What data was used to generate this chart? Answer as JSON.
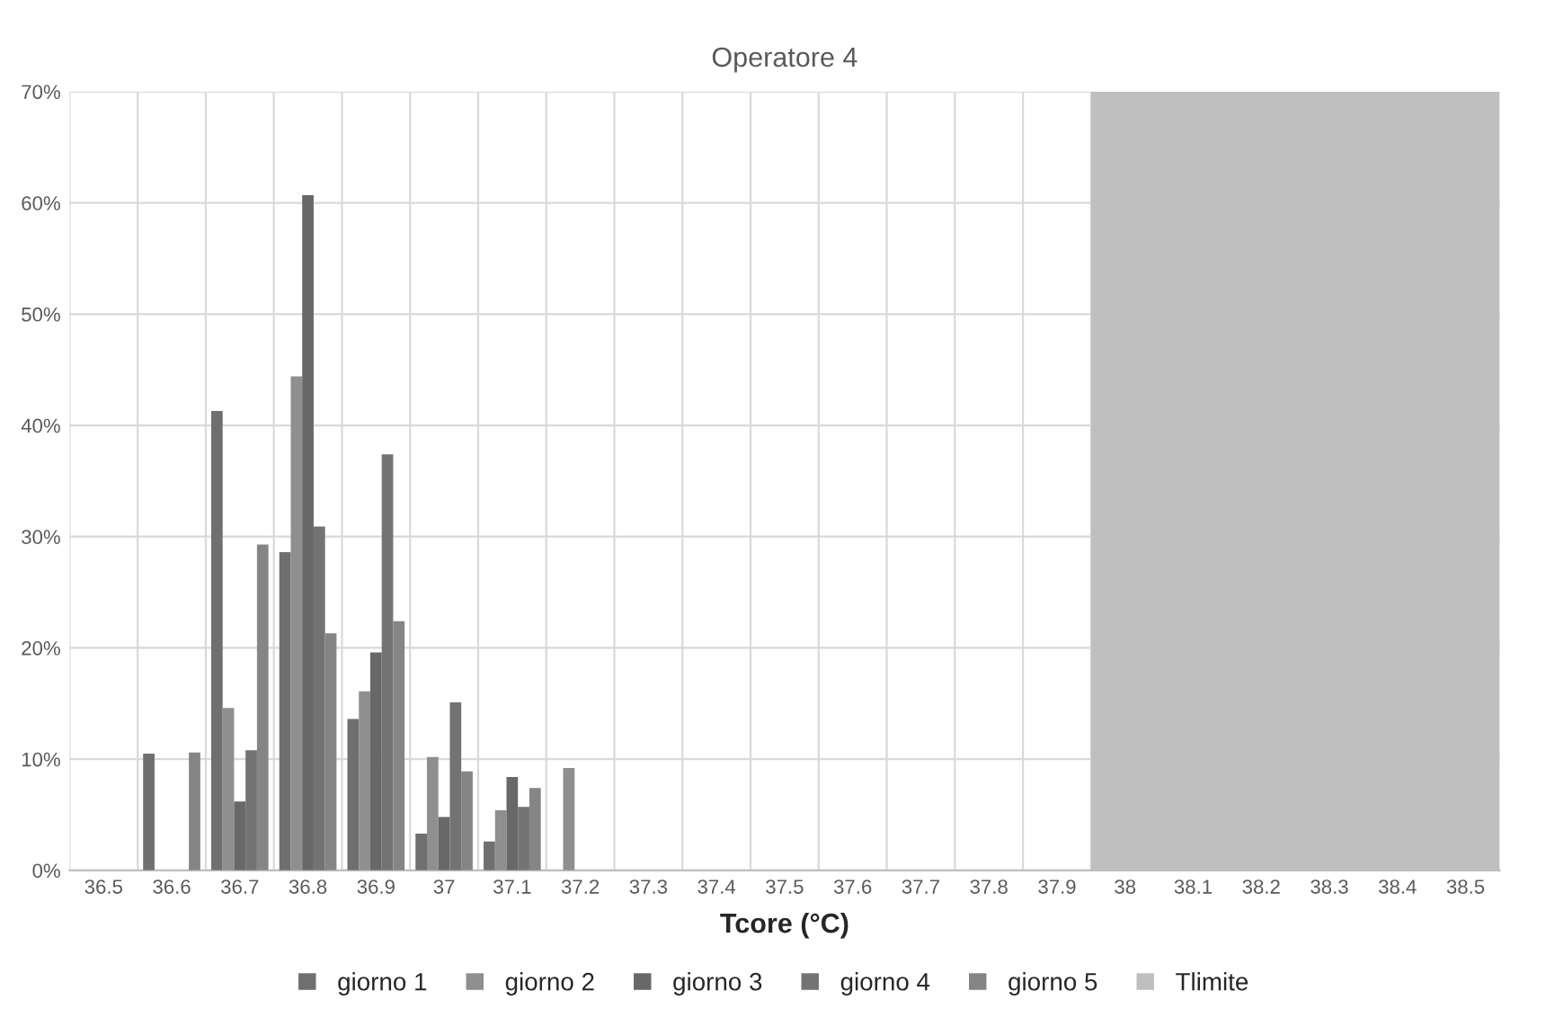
{
  "chart_data": {
    "type": "bar",
    "title": "Operatore 4",
    "xlabel": "Tcore (°C)",
    "categories": [
      "36.5",
      "36.6",
      "36.7",
      "36.8",
      "36.9",
      "37",
      "37.1",
      "37.2",
      "37.3",
      "37.4",
      "37.5",
      "37.6",
      "37.7",
      "37.8",
      "37.9",
      "38",
      "38.1",
      "38.2",
      "38.3",
      "38.4",
      "38.5"
    ],
    "series": [
      {
        "name": "giorno 1",
        "color": "#6f6f6f",
        "values": [
          null,
          10.5,
          41.3,
          28.6,
          13.6,
          3.3,
          2.6,
          null,
          null,
          null,
          null,
          null,
          null,
          null,
          null,
          null,
          null,
          null,
          null,
          null,
          null
        ]
      },
      {
        "name": "giorno 2",
        "color": "#8f8f8f",
        "values": [
          null,
          null,
          14.6,
          44.4,
          16.1,
          10.2,
          5.4,
          9.2,
          null,
          null,
          null,
          null,
          null,
          null,
          null,
          null,
          null,
          null,
          null,
          null,
          null
        ]
      },
      {
        "name": "giorno 3",
        "color": "#686868",
        "values": [
          null,
          null,
          6.2,
          60.7,
          19.6,
          4.8,
          8.4,
          null,
          null,
          null,
          null,
          null,
          null,
          null,
          null,
          null,
          null,
          null,
          null,
          null,
          null
        ]
      },
      {
        "name": "giorno 4",
        "color": "#737373",
        "values": [
          null,
          null,
          10.8,
          30.9,
          37.4,
          15.1,
          5.7,
          null,
          null,
          null,
          null,
          null,
          null,
          null,
          null,
          null,
          null,
          null,
          null,
          null,
          null
        ]
      },
      {
        "name": "giorno 5",
        "color": "#858585",
        "values": [
          null,
          10.6,
          29.3,
          21.3,
          22.4,
          8.9,
          7.4,
          null,
          null,
          null,
          null,
          null,
          null,
          null,
          null,
          null,
          null,
          null,
          null,
          null,
          null
        ]
      }
    ],
    "bands": [
      {
        "axis": "x",
        "from": "38",
        "to": "38.5",
        "label": "Tlimite",
        "color": "#bfbfbf"
      }
    ],
    "ylim": [
      0,
      70
    ],
    "yticks": [
      {
        "value": 0,
        "label": "0%"
      },
      {
        "value": 10,
        "label": "10%"
      },
      {
        "value": 20,
        "label": "20%"
      },
      {
        "value": 30,
        "label": "30%"
      },
      {
        "value": 40,
        "label": "40%"
      },
      {
        "value": 50,
        "label": "50%"
      },
      {
        "value": 60,
        "label": "60%"
      },
      {
        "value": 70,
        "label": "70%"
      }
    ],
    "grid": true,
    "legend": "bottom"
  }
}
